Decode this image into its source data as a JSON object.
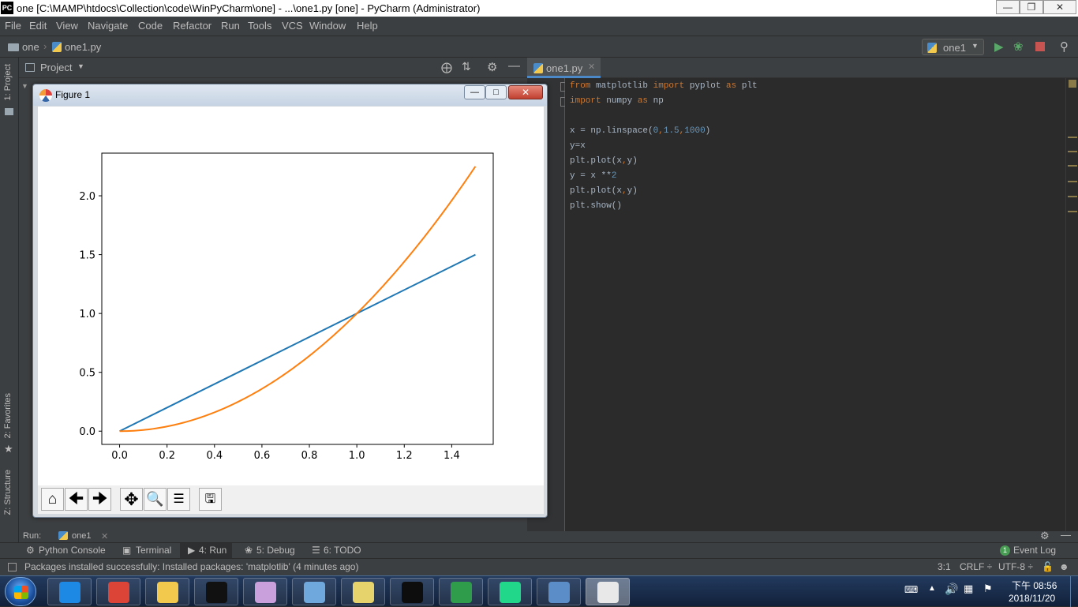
{
  "window": {
    "title": "one [C:\\MAMP\\htdocs\\Collection\\code\\WinPyCharm\\one] - ...\\one1.py [one] - PyCharm (Administrator)",
    "app_icon": "PC"
  },
  "menu": [
    "File",
    "Edit",
    "View",
    "Navigate",
    "Code",
    "Refactor",
    "Run",
    "Tools",
    "VCS",
    "Window",
    "Help"
  ],
  "nav": {
    "project": "one",
    "file": "one1.py",
    "run_config": "one1"
  },
  "side_tabs": {
    "project": "1: Project",
    "favorites": "2: Favorites",
    "structure": "Z: Structure"
  },
  "project_panel": {
    "title": "Project"
  },
  "editor": {
    "tab": "one1.py",
    "lines": [
      {
        "parts": [
          {
            "t": "from",
            "c": "kw"
          },
          {
            "t": " matplotlib ",
            "c": ""
          },
          {
            "t": "import",
            "c": "kw"
          },
          {
            "t": " pyplot ",
            "c": ""
          },
          {
            "t": "as",
            "c": "kw"
          },
          {
            "t": " plt",
            "c": ""
          }
        ]
      },
      {
        "parts": [
          {
            "t": "import",
            "c": "kw"
          },
          {
            "t": " numpy ",
            "c": ""
          },
          {
            "t": "as",
            "c": "kw"
          },
          {
            "t": " np",
            "c": ""
          }
        ]
      },
      {
        "parts": []
      },
      {
        "parts": [
          {
            "t": "x = np.linspace(",
            "c": ""
          },
          {
            "t": "0",
            "c": "num"
          },
          {
            "t": ",",
            "c": "kw"
          },
          {
            "t": "1.5",
            "c": "num"
          },
          {
            "t": ",",
            "c": "kw"
          },
          {
            "t": "1000",
            "c": "num"
          },
          {
            "t": ")",
            "c": ""
          }
        ]
      },
      {
        "parts": [
          {
            "t": "y=x",
            "c": ""
          }
        ]
      },
      {
        "parts": [
          {
            "t": "plt.plot(x",
            "c": ""
          },
          {
            "t": ",",
            "c": "kw"
          },
          {
            "t": "y)",
            "c": ""
          }
        ]
      },
      {
        "parts": [
          {
            "t": "y = x **",
            "c": ""
          },
          {
            "t": "2",
            "c": "num"
          }
        ]
      },
      {
        "parts": [
          {
            "t": "plt.plot(x",
            "c": ""
          },
          {
            "t": ",",
            "c": "kw"
          },
          {
            "t": "y)",
            "c": ""
          }
        ]
      },
      {
        "parts": [
          {
            "t": "plt.show()",
            "c": ""
          }
        ]
      }
    ]
  },
  "figure": {
    "title": "Figure 1",
    "toolbar_icons": [
      "home-icon",
      "back-arrow-icon",
      "forward-arrow-icon",
      "pan-icon",
      "zoom-icon",
      "configure-subplots-icon",
      "save-icon"
    ]
  },
  "chart_data": {
    "type": "line",
    "title": "",
    "xlabel": "",
    "ylabel": "",
    "xlim": [
      -0.075,
      1.575
    ],
    "ylim": [
      -0.1125,
      2.3625
    ],
    "xticks": [
      "0.0",
      "0.2",
      "0.4",
      "0.6",
      "0.8",
      "1.0",
      "1.2",
      "1.4"
    ],
    "yticks": [
      "0.0",
      "0.5",
      "1.0",
      "1.5",
      "2.0"
    ],
    "xtick_values": [
      0,
      0.2,
      0.4,
      0.6,
      0.8,
      1.0,
      1.2,
      1.4
    ],
    "ytick_values": [
      0,
      0.5,
      1.0,
      1.5,
      2.0
    ],
    "grid": false,
    "series": [
      {
        "expression": "y = x",
        "color": "#1f77b4",
        "x": [
          0,
          0.25,
          0.5,
          0.75,
          1.0,
          1.25,
          1.5
        ],
        "y": [
          0,
          0.25,
          0.5,
          0.75,
          1.0,
          1.25,
          1.5
        ]
      },
      {
        "expression": "y = x**2",
        "color": "#ff7f0e",
        "x": [
          0,
          0.1,
          0.2,
          0.3,
          0.4,
          0.5,
          0.6,
          0.7,
          0.8,
          0.9,
          1.0,
          1.1,
          1.2,
          1.3,
          1.4,
          1.5
        ],
        "y": [
          0,
          0.01,
          0.04,
          0.09,
          0.16,
          0.25,
          0.36,
          0.49,
          0.64,
          0.81,
          1.0,
          1.21,
          1.44,
          1.69,
          1.96,
          2.25
        ]
      }
    ]
  },
  "run_panel": {
    "label": "Run:",
    "config": "one1"
  },
  "tool_windows": [
    {
      "label": "Python Console",
      "icon": "python-console-icon"
    },
    {
      "label": "Terminal",
      "icon": "terminal-icon"
    },
    {
      "label": "4: Run",
      "icon": "run-icon"
    },
    {
      "label": "5: Debug",
      "icon": "debug-icon"
    },
    {
      "label": "6: TODO",
      "icon": "todo-icon"
    }
  ],
  "event_log": {
    "count": "1",
    "label": "Event Log"
  },
  "status": {
    "message": "Packages installed successfully: Installed packages: 'matplotlib' (4 minutes ago)",
    "position": "3:1",
    "line_sep": "CRLF ÷",
    "encoding": "UTF-8 ÷"
  },
  "taskbar": {
    "time": "下午 08:56",
    "date": "2018/11/20",
    "apps": [
      {
        "name": "internet-explorer-icon",
        "color": "#1e88e5"
      },
      {
        "name": "chrome-icon",
        "color": "#db4437"
      },
      {
        "name": "file-explorer-icon",
        "color": "#f2c94c"
      },
      {
        "name": "command-prompt-icon",
        "color": "#111111"
      },
      {
        "name": "paint-icon",
        "color": "#c9a0dc"
      },
      {
        "name": "notepad-icon",
        "color": "#6fa8dc"
      },
      {
        "name": "sticky-notes-icon",
        "color": "#e6d36b"
      },
      {
        "name": "intellij-icon",
        "color": "#0d0d0d"
      },
      {
        "name": "cycle-app-icon",
        "color": "#2e9c4a"
      },
      {
        "name": "pycharm-icon",
        "color": "#21d789"
      },
      {
        "name": "photo-viewer-icon",
        "color": "#5b8ec9"
      },
      {
        "name": "matplotlib-figure-icon",
        "color": "#e8e8e8"
      }
    ]
  }
}
